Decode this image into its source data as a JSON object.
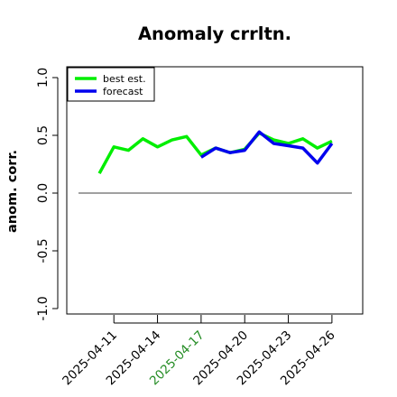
{
  "chart_data": {
    "type": "line",
    "title": "Anomaly crrltn.",
    "xlabel": "",
    "ylabel": "anom. corr.",
    "ylim": [
      -1.0,
      1.0
    ],
    "yticks": [
      -1.0,
      -0.5,
      0.0,
      0.5,
      1.0
    ],
    "ytick_labels": [
      "-1.0",
      "-0.5",
      "0.0",
      "0.5",
      "1.0"
    ],
    "xlim": [
      "2025-04-09",
      "2025-04-27"
    ],
    "xticks": [
      "2025-04-11",
      "2025-04-14",
      "2025-04-17",
      "2025-04-20",
      "2025-04-23",
      "2025-04-26"
    ],
    "xtick_colors": [
      "#000000",
      "#000000",
      "#228B22",
      "#000000",
      "#000000",
      "#000000"
    ],
    "reference_line": 0.0,
    "legend": {
      "position": "top-left"
    },
    "x": [
      "2025-04-10",
      "2025-04-11",
      "2025-04-12",
      "2025-04-13",
      "2025-04-14",
      "2025-04-15",
      "2025-04-16",
      "2025-04-17",
      "2025-04-18",
      "2025-04-19",
      "2025-04-20",
      "2025-04-21",
      "2025-04-22",
      "2025-04-23",
      "2025-04-24",
      "2025-04-25",
      "2025-04-26"
    ],
    "series": [
      {
        "name": "best est.",
        "color": "#00ee00",
        "values": [
          0.17,
          0.4,
          0.37,
          0.47,
          0.4,
          0.46,
          0.49,
          0.33,
          0.39,
          0.35,
          0.38,
          0.52,
          0.46,
          0.43,
          0.47,
          0.39,
          0.45
        ]
      },
      {
        "name": "forecast",
        "color": "#0000ee",
        "values": [
          null,
          null,
          null,
          null,
          null,
          null,
          null,
          0.31,
          0.39,
          0.35,
          0.37,
          0.53,
          0.43,
          0.41,
          0.39,
          0.26,
          0.43
        ]
      }
    ]
  }
}
